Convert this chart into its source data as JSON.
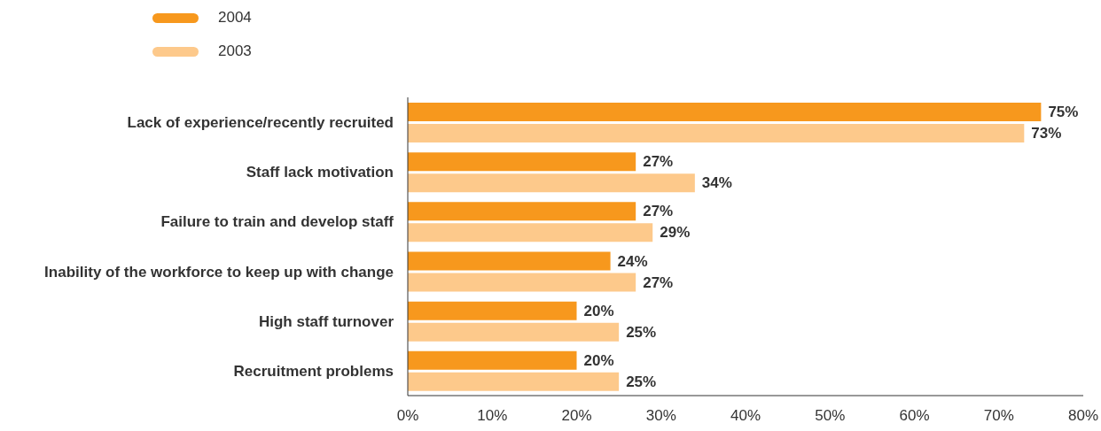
{
  "chart_data": {
    "type": "bar",
    "orientation": "horizontal",
    "categories": [
      "Lack of experience/recently recruited",
      "Staff lack motivation",
      "Failure to train and develop staff",
      "Inability of the workforce to keep up with change",
      "High staff turnover",
      "Recruitment problems"
    ],
    "series": [
      {
        "name": "2004",
        "color": "#f7981d",
        "values": [
          75,
          27,
          27,
          24,
          20,
          20
        ],
        "value_labels": [
          "75%",
          "27%",
          "27%",
          "24%",
          "20%",
          "20%"
        ]
      },
      {
        "name": "2003",
        "color": "#fdc98b",
        "values": [
          73,
          34,
          29,
          27,
          25,
          25
        ],
        "value_labels": [
          "73%",
          "34%",
          "29%",
          "27%",
          "25%",
          "25%"
        ]
      }
    ],
    "xlim": [
      0,
      80
    ],
    "xticks": [
      {
        "value": 0,
        "label": "0%"
      },
      {
        "value": 10,
        "label": "10%"
      },
      {
        "value": 20,
        "label": "20%"
      },
      {
        "value": 30,
        "label": "30%"
      },
      {
        "value": 40,
        "label": "40%"
      },
      {
        "value": 50,
        "label": "50%"
      },
      {
        "value": 60,
        "label": "60%"
      },
      {
        "value": 70,
        "label": "70%"
      },
      {
        "value": 80,
        "label": "80%"
      }
    ],
    "grid": false,
    "legend": "top left"
  }
}
